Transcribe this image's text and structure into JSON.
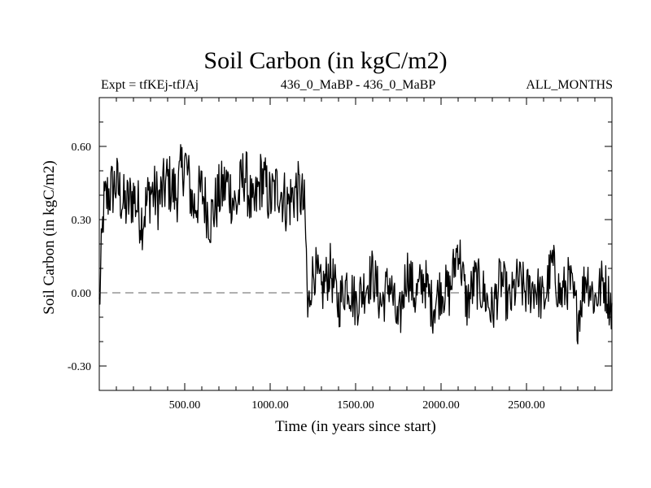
{
  "chart_data": {
    "type": "line",
    "title": "Soil Carbon (in kgC/m2)",
    "subtitle_left": "Expt = tfKEj-tfJAj",
    "subtitle_center": "436_0_MaBP - 436_0_MaBP",
    "subtitle_right": "ALL_MONTHS",
    "xlabel": "Time (in years since start)",
    "ylabel": "Soil Carbon (in kgC/m2)",
    "xlim": [
      0,
      3000
    ],
    "ylim": [
      -0.4,
      0.8
    ],
    "x_ticks": [
      500,
      1000,
      1500,
      2000,
      2500
    ],
    "x_tick_labels": [
      "500.00",
      "1000.00",
      "1500.00",
      "2000.00",
      "2500.00"
    ],
    "y_ticks": [
      0.6,
      0.3,
      0.0,
      -0.3
    ],
    "y_tick_labels": [
      "0.60",
      "0.30",
      "0.00",
      "-0.30"
    ],
    "reference_line": {
      "y": 0.0,
      "style": "dashed"
    },
    "series": [
      {
        "color": "#000000",
        "x": [
          0,
          10,
          25,
          50,
          100,
          150,
          200,
          250,
          300,
          350,
          400,
          450,
          500,
          550,
          600,
          650,
          700,
          750,
          800,
          850,
          900,
          950,
          1000,
          1050,
          1100,
          1150,
          1180,
          1200,
          1210,
          1220,
          1240,
          1260,
          1300,
          1350,
          1400,
          1450,
          1500,
          1550,
          1600,
          1650,
          1700,
          1750,
          1800,
          1850,
          1900,
          1950,
          2000,
          2050,
          2100,
          2150,
          2200,
          2250,
          2300,
          2350,
          2400,
          2450,
          2500,
          2550,
          2600,
          2650,
          2700,
          2750,
          2800,
          2850,
          2900,
          2950,
          3000
        ],
        "y": [
          -0.06,
          0.1,
          0.35,
          0.4,
          0.45,
          0.35,
          0.4,
          0.3,
          0.42,
          0.38,
          0.46,
          0.4,
          0.55,
          0.35,
          0.42,
          0.3,
          0.4,
          0.45,
          0.35,
          0.5,
          0.32,
          0.48,
          0.38,
          0.44,
          0.36,
          0.42,
          0.4,
          0.34,
          0.2,
          -0.1,
          0.05,
          0.1,
          0.0,
          0.1,
          -0.05,
          0.05,
          -0.04,
          0.02,
          0.08,
          -0.05,
          0.05,
          -0.15,
          0.1,
          -0.02,
          0.06,
          -0.06,
          0.02,
          0.0,
          0.2,
          -0.05,
          0.05,
          0.0,
          -0.08,
          0.06,
          -0.05,
          0.05,
          0.0,
          0.03,
          -0.04,
          0.12,
          -0.02,
          0.05,
          -0.1,
          0.08,
          -0.03,
          0.05,
          -0.06
        ]
      }
    ],
    "grid": false,
    "legend": "none"
  }
}
